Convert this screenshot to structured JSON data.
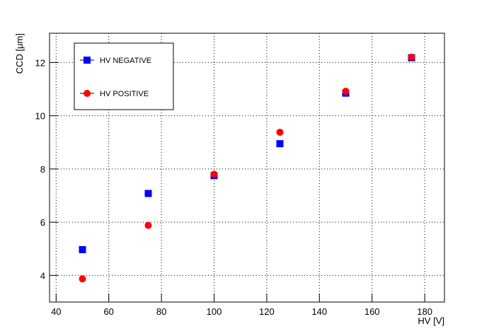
{
  "chart_data": {
    "type": "scatter",
    "x_label": "HV [V]",
    "y_label": "CCD [μm]",
    "xlim": [
      37.5,
      187.5
    ],
    "ylim": [
      3,
      13.1
    ],
    "xticks": [
      40,
      60,
      80,
      100,
      120,
      140,
      160,
      180
    ],
    "yticks": [
      4,
      6,
      8,
      10,
      12
    ],
    "grid": true,
    "legend": "top-left",
    "series": [
      {
        "name": "HV NEGATIVE",
        "color": "#0000ff",
        "marker": "square",
        "x": [
          50,
          75,
          100,
          125,
          150,
          175
        ],
        "values": [
          4.97,
          7.08,
          7.75,
          8.95,
          10.85,
          12.18
        ]
      },
      {
        "name": "HV POSITIVE",
        "color": "#ff0000",
        "marker": "circle",
        "x": [
          50,
          75,
          100,
          125,
          150,
          175
        ],
        "values": [
          3.87,
          5.88,
          7.8,
          9.38,
          10.92,
          12.2
        ]
      }
    ]
  }
}
